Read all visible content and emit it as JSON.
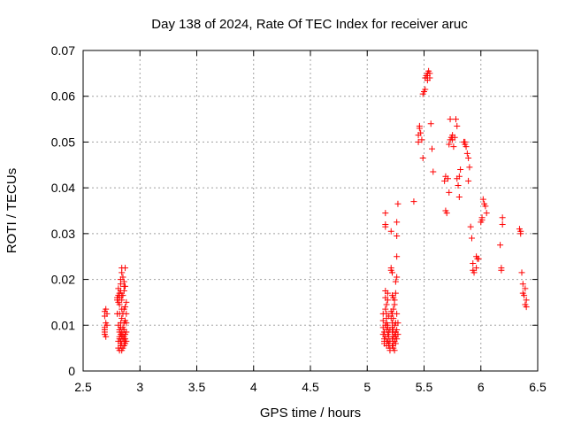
{
  "chart_data": {
    "type": "scatter",
    "title": "Day 138 of 2024, Rate Of TEC Index for receiver aruc",
    "xlabel": "GPS time / hours",
    "ylabel": "ROTI / TECUs",
    "xlim": [
      2.5,
      6.5
    ],
    "ylim": [
      0,
      0.07
    ],
    "xticks": [
      "2.5",
      "3",
      "3.5",
      "4",
      "4.5",
      "5",
      "5.5",
      "6",
      "6.5"
    ],
    "yticks": [
      "0",
      "0.01",
      "0.02",
      "0.03",
      "0.04",
      "0.05",
      "0.06",
      "0.07"
    ],
    "grid": true,
    "marker": "plus",
    "color": "#ff0000",
    "series": [
      {
        "name": "ROTI",
        "points": [
          [
            2.69,
            0.013
          ],
          [
            2.69,
            0.012
          ],
          [
            2.69,
            0.0095
          ],
          [
            2.69,
            0.009
          ],
          [
            2.69,
            0.0085
          ],
          [
            2.69,
            0.008
          ],
          [
            2.7,
            0.0135
          ],
          [
            2.7,
            0.0075
          ],
          [
            2.71,
            0.0125
          ],
          [
            2.71,
            0.01
          ],
          [
            2.7,
            0.0105
          ],
          [
            2.8,
            0.016
          ],
          [
            2.8,
            0.0155
          ],
          [
            2.81,
            0.0165
          ],
          [
            2.81,
            0.018
          ],
          [
            2.81,
            0.015
          ],
          [
            2.8,
            0.0125
          ],
          [
            2.81,
            0.01
          ],
          [
            2.81,
            0.0065
          ],
          [
            2.81,
            0.005
          ],
          [
            2.82,
            0.0045
          ],
          [
            2.82,
            0.0075
          ],
          [
            2.82,
            0.007
          ],
          [
            2.82,
            0.0085
          ],
          [
            2.82,
            0.009
          ],
          [
            2.82,
            0.0125
          ],
          [
            2.82,
            0.016
          ],
          [
            2.82,
            0.017
          ],
          [
            2.83,
            0.0055
          ],
          [
            2.83,
            0.006
          ],
          [
            2.83,
            0.0065
          ],
          [
            2.83,
            0.008
          ],
          [
            2.83,
            0.0095
          ],
          [
            2.83,
            0.0105
          ],
          [
            2.83,
            0.0175
          ],
          [
            2.83,
            0.019
          ],
          [
            2.83,
            0.02
          ],
          [
            2.84,
            0.0045
          ],
          [
            2.84,
            0.006
          ],
          [
            2.84,
            0.0075
          ],
          [
            2.84,
            0.0085
          ],
          [
            2.84,
            0.0115
          ],
          [
            2.84,
            0.0135
          ],
          [
            2.84,
            0.0155
          ],
          [
            2.84,
            0.0165
          ],
          [
            2.84,
            0.0215
          ],
          [
            2.85,
            0.005
          ],
          [
            2.85,
            0.007
          ],
          [
            2.85,
            0.008
          ],
          [
            2.85,
            0.0095
          ],
          [
            2.85,
            0.0125
          ],
          [
            2.85,
            0.0165
          ],
          [
            2.85,
            0.0205
          ],
          [
            2.86,
            0.0055
          ],
          [
            2.86,
            0.0065
          ],
          [
            2.86,
            0.0075
          ],
          [
            2.86,
            0.009
          ],
          [
            2.86,
            0.0105
          ],
          [
            2.86,
            0.0175
          ],
          [
            2.86,
            0.0185
          ],
          [
            2.87,
            0.006
          ],
          [
            2.87,
            0.007
          ],
          [
            2.87,
            0.008
          ],
          [
            2.87,
            0.011
          ],
          [
            2.87,
            0.014
          ],
          [
            2.87,
            0.0185
          ],
          [
            2.87,
            0.0225
          ],
          [
            2.88,
            0.0065
          ],
          [
            2.88,
            0.0085
          ],
          [
            2.88,
            0.0105
          ],
          [
            2.88,
            0.015
          ],
          [
            2.86,
            0.0195
          ],
          [
            2.82,
            0.0145
          ],
          [
            2.84,
            0.0225
          ],
          [
            2.88,
            0.0125
          ],
          [
            2.86,
            0.0135
          ],
          [
            5.14,
            0.0125
          ],
          [
            5.14,
            0.011
          ],
          [
            5.14,
            0.0095
          ],
          [
            5.14,
            0.008
          ],
          [
            5.15,
            0.007
          ],
          [
            5.15,
            0.0065
          ],
          [
            5.15,
            0.006
          ],
          [
            5.15,
            0.0085
          ],
          [
            5.16,
            0.0315
          ],
          [
            5.16,
            0.032
          ],
          [
            5.16,
            0.0345
          ],
          [
            5.16,
            0.0175
          ],
          [
            5.16,
            0.016
          ],
          [
            5.16,
            0.0135
          ],
          [
            5.16,
            0.01
          ],
          [
            5.16,
            0.0075
          ],
          [
            5.17,
            0.0055
          ],
          [
            5.17,
            0.0065
          ],
          [
            5.17,
            0.009
          ],
          [
            5.17,
            0.0105
          ],
          [
            5.17,
            0.0115
          ],
          [
            5.17,
            0.0125
          ],
          [
            5.17,
            0.0145
          ],
          [
            5.18,
            0.0155
          ],
          [
            5.18,
            0.017
          ],
          [
            5.18,
            0.0065
          ],
          [
            5.18,
            0.008
          ],
          [
            5.18,
            0.0095
          ],
          [
            5.18,
            0.01
          ],
          [
            5.19,
            0.0085
          ],
          [
            5.19,
            0.0075
          ],
          [
            5.19,
            0.006
          ],
          [
            5.19,
            0.0055
          ],
          [
            5.2,
            0.0065
          ],
          [
            5.2,
            0.005
          ],
          [
            5.2,
            0.009
          ],
          [
            5.21,
            0.0115
          ],
          [
            5.21,
            0.013
          ],
          [
            5.21,
            0.022
          ],
          [
            5.21,
            0.0225
          ],
          [
            5.21,
            0.0305
          ],
          [
            5.22,
            0.0055
          ],
          [
            5.22,
            0.007
          ],
          [
            5.22,
            0.0085
          ],
          [
            5.22,
            0.0095
          ],
          [
            5.22,
            0.0105
          ],
          [
            5.22,
            0.0125
          ],
          [
            5.22,
            0.0165
          ],
          [
            5.22,
            0.0215
          ],
          [
            5.23,
            0.005
          ],
          [
            5.23,
            0.006
          ],
          [
            5.23,
            0.0075
          ],
          [
            5.23,
            0.009
          ],
          [
            5.23,
            0.0115
          ],
          [
            5.23,
            0.0135
          ],
          [
            5.23,
            0.016
          ],
          [
            5.24,
            0.0045
          ],
          [
            5.24,
            0.0065
          ],
          [
            5.24,
            0.008
          ],
          [
            5.24,
            0.01
          ],
          [
            5.24,
            0.0145
          ],
          [
            5.24,
            0.0155
          ],
          [
            5.25,
            0.006
          ],
          [
            5.25,
            0.0075
          ],
          [
            5.25,
            0.0085
          ],
          [
            5.25,
            0.0105
          ],
          [
            5.25,
            0.017
          ],
          [
            5.25,
            0.0195
          ],
          [
            5.26,
            0.007
          ],
          [
            5.26,
            0.009
          ],
          [
            5.26,
            0.0125
          ],
          [
            5.26,
            0.0205
          ],
          [
            5.26,
            0.025
          ],
          [
            5.26,
            0.0295
          ],
          [
            5.26,
            0.0325
          ],
          [
            5.27,
            0.0365
          ],
          [
            5.27,
            0.0105
          ],
          [
            5.27,
            0.008
          ],
          [
            5.2,
            0.0045
          ],
          [
            5.19,
            0.012
          ],
          [
            5.41,
            0.037
          ],
          [
            5.45,
            0.0515
          ],
          [
            5.45,
            0.05
          ],
          [
            5.46,
            0.053
          ],
          [
            5.46,
            0.0535
          ],
          [
            5.47,
            0.052
          ],
          [
            5.48,
            0.0505
          ],
          [
            5.49,
            0.0465
          ],
          [
            5.49,
            0.0605
          ],
          [
            5.5,
            0.061
          ],
          [
            5.51,
            0.0615
          ],
          [
            5.51,
            0.064
          ],
          [
            5.52,
            0.0645
          ],
          [
            5.53,
            0.0645
          ],
          [
            5.53,
            0.065
          ],
          [
            5.53,
            0.0635
          ],
          [
            5.54,
            0.0655
          ],
          [
            5.55,
            0.065
          ],
          [
            5.55,
            0.064
          ],
          [
            5.56,
            0.054
          ],
          [
            5.57,
            0.0485
          ],
          [
            5.58,
            0.0435
          ],
          [
            5.68,
            0.0415
          ],
          [
            5.69,
            0.0425
          ],
          [
            5.69,
            0.035
          ],
          [
            5.7,
            0.0345
          ],
          [
            5.71,
            0.042
          ],
          [
            5.72,
            0.039
          ],
          [
            5.72,
            0.0495
          ],
          [
            5.73,
            0.0505
          ],
          [
            5.73,
            0.055
          ],
          [
            5.74,
            0.051
          ],
          [
            5.75,
            0.0515
          ],
          [
            5.75,
            0.0505
          ],
          [
            5.76,
            0.049
          ],
          [
            5.77,
            0.051
          ],
          [
            5.78,
            0.055
          ],
          [
            5.79,
            0.0535
          ],
          [
            5.79,
            0.042
          ],
          [
            5.8,
            0.0405
          ],
          [
            5.81,
            0.0425
          ],
          [
            5.81,
            0.038
          ],
          [
            5.82,
            0.044
          ],
          [
            5.85,
            0.05
          ],
          [
            5.86,
            0.05
          ],
          [
            5.86,
            0.0495
          ],
          [
            5.87,
            0.049
          ],
          [
            5.88,
            0.0475
          ],
          [
            5.89,
            0.0465
          ],
          [
            5.89,
            0.0415
          ],
          [
            5.9,
            0.0445
          ],
          [
            5.91,
            0.0315
          ],
          [
            5.92,
            0.029
          ],
          [
            5.93,
            0.0235
          ],
          [
            5.93,
            0.022
          ],
          [
            5.94,
            0.0215
          ],
          [
            5.96,
            0.0225
          ],
          [
            5.96,
            0.025
          ],
          [
            5.97,
            0.0245
          ],
          [
            5.98,
            0.0245
          ],
          [
            6.0,
            0.0325
          ],
          [
            6.01,
            0.0335
          ],
          [
            6.01,
            0.033
          ],
          [
            6.02,
            0.0375
          ],
          [
            6.03,
            0.0365
          ],
          [
            6.04,
            0.036
          ],
          [
            6.05,
            0.0345
          ],
          [
            6.17,
            0.0275
          ],
          [
            6.18,
            0.022
          ],
          [
            6.18,
            0.0225
          ],
          [
            6.19,
            0.032
          ],
          [
            6.19,
            0.0335
          ],
          [
            6.34,
            0.031
          ],
          [
            6.35,
            0.0305
          ],
          [
            6.35,
            0.03
          ],
          [
            6.36,
            0.0215
          ],
          [
            6.37,
            0.019
          ],
          [
            6.37,
            0.017
          ],
          [
            6.38,
            0.0165
          ],
          [
            6.39,
            0.018
          ],
          [
            6.39,
            0.0145
          ],
          [
            6.4,
            0.0155
          ],
          [
            6.4,
            0.014
          ]
        ]
      }
    ]
  }
}
